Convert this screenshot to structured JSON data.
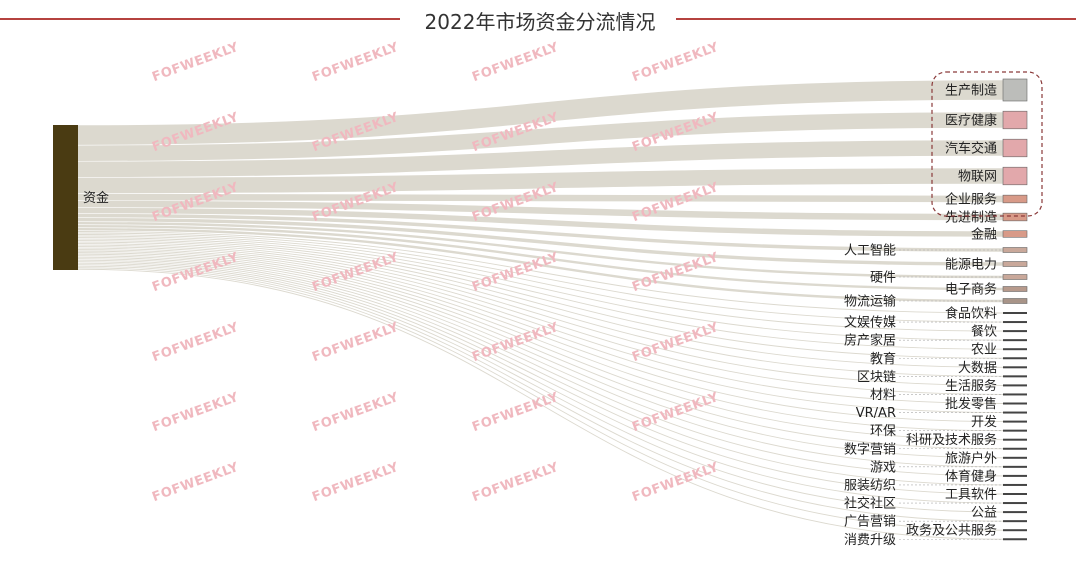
{
  "title": "2022年市场资金分流情况",
  "watermark": "FOFWEEKLY",
  "colors": {
    "flow": "#dcd9cf",
    "source": "#4a3b12",
    "title_rule": "#b5423f",
    "highlight_box": "#8a3a3a"
  },
  "source": {
    "label": "资金"
  },
  "targets": [
    {
      "label": "生产制造",
      "value": 20,
      "color": "#bcbdba"
    },
    {
      "label": "医疗健康",
      "value": 16,
      "color": "#e2a8ab"
    },
    {
      "label": "汽车交通",
      "value": 16,
      "color": "#e2a8ab"
    },
    {
      "label": "物联网",
      "value": 16,
      "color": "#e2a8ab"
    },
    {
      "label": "企业服务",
      "value": 7,
      "color": "#d89a88"
    },
    {
      "label": "先进制造",
      "value": 7,
      "color": "#d89a88"
    },
    {
      "label": "金融",
      "value": 6,
      "color": "#d89a88"
    },
    {
      "label": "人工智能",
      "value": 4,
      "color": "#c9a89a"
    },
    {
      "label": "能源电力",
      "value": 4,
      "color": "#c9a89a"
    },
    {
      "label": "硬件",
      "value": 3,
      "color": "#c9a89a"
    },
    {
      "label": "电子商务",
      "value": 3,
      "color": "#b79a8c"
    },
    {
      "label": "物流运输",
      "value": 3,
      "color": "#a89488"
    },
    {
      "label": "食品饮料",
      "value": 1.5,
      "color": "#444"
    },
    {
      "label": "文娱传媒",
      "value": 1.5,
      "color": "#444"
    },
    {
      "label": "餐饮",
      "value": 1.5,
      "color": "#444"
    },
    {
      "label": "房产家居",
      "value": 1.5,
      "color": "#444"
    },
    {
      "label": "农业",
      "value": 1.5,
      "color": "#444"
    },
    {
      "label": "教育",
      "value": 1.5,
      "color": "#444"
    },
    {
      "label": "大数据",
      "value": 1.5,
      "color": "#444"
    },
    {
      "label": "区块链",
      "value": 1.5,
      "color": "#444"
    },
    {
      "label": "生活服务",
      "value": 1.5,
      "color": "#444"
    },
    {
      "label": "材料",
      "value": 1.5,
      "color": "#444"
    },
    {
      "label": "批发零售",
      "value": 1.5,
      "color": "#444"
    },
    {
      "label": "VR/AR",
      "value": 1.5,
      "color": "#444"
    },
    {
      "label": "开发",
      "value": 1.5,
      "color": "#444"
    },
    {
      "label": "环保",
      "value": 1.5,
      "color": "#444"
    },
    {
      "label": "科研及技术服务",
      "value": 1.5,
      "color": "#444"
    },
    {
      "label": "数字营销",
      "value": 1.5,
      "color": "#444"
    },
    {
      "label": "旅游户外",
      "value": 1.5,
      "color": "#444"
    },
    {
      "label": "游戏",
      "value": 1.5,
      "color": "#444"
    },
    {
      "label": "体育健身",
      "value": 1.5,
      "color": "#444"
    },
    {
      "label": "服装纺织",
      "value": 1.5,
      "color": "#444"
    },
    {
      "label": "工具软件",
      "value": 1.5,
      "color": "#444"
    },
    {
      "label": "社交社区",
      "value": 1.5,
      "color": "#444"
    },
    {
      "label": "公益",
      "value": 1.5,
      "color": "#444"
    },
    {
      "label": "广告营销",
      "value": 1.5,
      "color": "#444"
    },
    {
      "label": "政务及公共服务",
      "value": 1.5,
      "color": "#444"
    },
    {
      "label": "消费升级",
      "value": 1.5,
      "color": "#444"
    }
  ]
}
